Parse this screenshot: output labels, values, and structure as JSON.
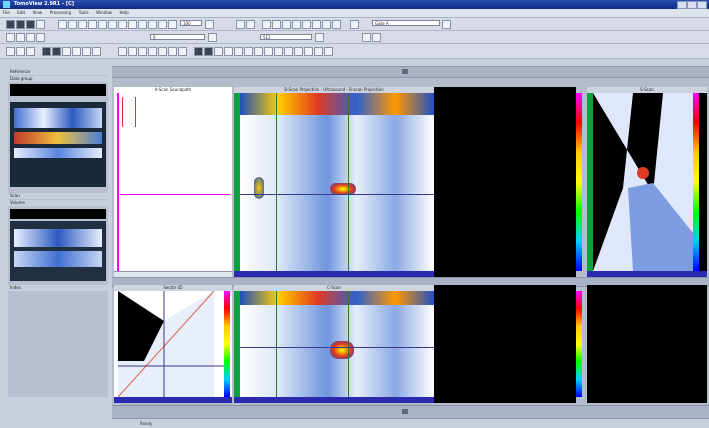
{
  "window": {
    "title": "TomoView 2.9R1 - [C]"
  },
  "menu": {
    "items": [
      "File",
      "Edit",
      "View",
      "Processing",
      "Tools",
      "Window",
      "Help"
    ]
  },
  "toolbar": {
    "zoom_value": "100",
    "range_start": "0",
    "range_end": "512",
    "unit_value": "mm",
    "gate_label": "Gate A"
  },
  "left_panel": {
    "header_1": "Reference",
    "header_2": "Volume",
    "label_1": "Data group",
    "label_2": "Scan",
    "label_3": "Index"
  },
  "panels": {
    "ascan": {
      "title": "A-Scan Soundpath"
    },
    "bscan": {
      "title": "B-Scan Projection - Ultrasound - B-scan Projection"
    },
    "sscan": {
      "title": "S-Scan"
    },
    "sector": {
      "title": "Sector 45"
    },
    "cscan": {
      "title": "C-Scan"
    },
    "empty": {
      "title": ""
    }
  },
  "status": {
    "text": "Ready"
  },
  "colors": {
    "accent": "#0f2a86",
    "background": "#c9cfdc",
    "cursor": "#ff00ff"
  }
}
